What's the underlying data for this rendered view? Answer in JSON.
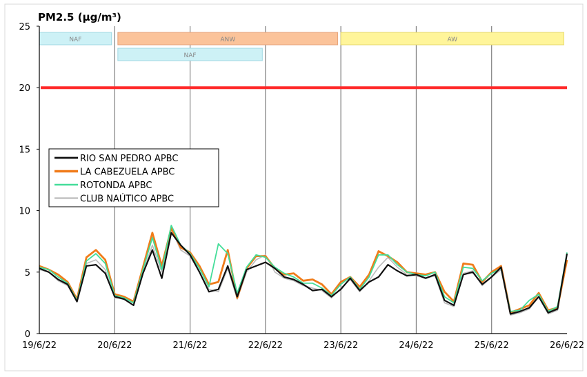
{
  "chart_data": {
    "type": "line",
    "title": "PM2.5 (µg/m³)",
    "xlabel": "",
    "ylabel": "",
    "ylim": [
      0,
      25
    ],
    "y_ticks": [
      "0",
      "5",
      "10",
      "15",
      "20",
      "25"
    ],
    "xlim": [
      "2022-06-19T00:00",
      "2022-06-26T00:00"
    ],
    "x_ticks": [
      "19/6/22",
      "20/6/22",
      "21/6/22",
      "22/6/22",
      "23/6/22",
      "24/6/22",
      "25/6/22",
      "26/6/22"
    ],
    "grid": "vertical at each day",
    "legend_position": "middle-left",
    "reference_line": {
      "value": 20,
      "color": "#ff2a2a"
    },
    "episodes": [
      {
        "label": "NAF",
        "start": "2022-06-19T00:00",
        "end": "2022-06-19T23:00",
        "row": 1,
        "color": "#cdf1f6",
        "border": "#9fd8e3"
      },
      {
        "label": "ANW",
        "start": "2022-06-20T01:00",
        "end": "2022-06-22T23:00",
        "row": 1,
        "color": "#fbc39a",
        "border": "#e5a27a"
      },
      {
        "label": "NAF",
        "start": "2022-06-20T01:00",
        "end": "2022-06-21T23:00",
        "row": 2,
        "color": "#cdf1f6",
        "border": "#9fd8e3"
      },
      {
        "label": "AW",
        "start": "2022-06-23T00:00",
        "end": "2022-06-25T23:00",
        "row": 1,
        "color": "#fff59a",
        "border": "#e6d86a"
      }
    ],
    "x": [
      "2022-06-19T00:00",
      "2022-06-19T03:00",
      "2022-06-19T06:00",
      "2022-06-19T09:00",
      "2022-06-19T12:00",
      "2022-06-19T15:00",
      "2022-06-19T18:00",
      "2022-06-19T21:00",
      "2022-06-20T00:00",
      "2022-06-20T03:00",
      "2022-06-20T06:00",
      "2022-06-20T09:00",
      "2022-06-20T12:00",
      "2022-06-20T15:00",
      "2022-06-20T18:00",
      "2022-06-20T21:00",
      "2022-06-21T00:00",
      "2022-06-21T03:00",
      "2022-06-21T06:00",
      "2022-06-21T09:00",
      "2022-06-21T12:00",
      "2022-06-21T15:00",
      "2022-06-21T18:00",
      "2022-06-21T21:00",
      "2022-06-22T00:00",
      "2022-06-22T03:00",
      "2022-06-22T06:00",
      "2022-06-22T09:00",
      "2022-06-22T12:00",
      "2022-06-22T15:00",
      "2022-06-22T18:00",
      "2022-06-22T21:00",
      "2022-06-23T00:00",
      "2022-06-23T03:00",
      "2022-06-23T06:00",
      "2022-06-23T09:00",
      "2022-06-23T12:00",
      "2022-06-23T15:00",
      "2022-06-23T18:00",
      "2022-06-23T21:00",
      "2022-06-24T00:00",
      "2022-06-24T03:00",
      "2022-06-24T06:00",
      "2022-06-24T09:00",
      "2022-06-24T12:00",
      "2022-06-24T15:00",
      "2022-06-24T18:00",
      "2022-06-24T21:00",
      "2022-06-25T00:00",
      "2022-06-25T03:00",
      "2022-06-25T06:00",
      "2022-06-25T09:00",
      "2022-06-25T12:00",
      "2022-06-25T15:00",
      "2022-06-25T18:00",
      "2022-06-25T21:00",
      "2022-06-26T00:00"
    ],
    "series": [
      {
        "name": "RIO SAN PEDRO APBC",
        "color": "#111111",
        "width": 2.2,
        "values": [
          5.3,
          5.0,
          4.4,
          4.0,
          2.6,
          5.5,
          5.6,
          4.9,
          3.0,
          2.8,
          2.3,
          4.9,
          6.8,
          4.5,
          8.2,
          7.2,
          6.4,
          5.0,
          3.4,
          3.6,
          5.5,
          3.0,
          5.2,
          5.5,
          5.8,
          5.3,
          4.6,
          4.4,
          4.0,
          3.5,
          3.6,
          3.0,
          3.6,
          4.5,
          3.5,
          4.2,
          4.6,
          5.6,
          5.1,
          4.7,
          4.8,
          4.5,
          4.8,
          2.7,
          2.3,
          4.8,
          5.0,
          4.0,
          4.6,
          5.4,
          1.6,
          1.8,
          2.1,
          3.0,
          1.7,
          2.0,
          6.5
        ]
      },
      {
        "name": "LA CABEZUELA APBC",
        "color": "#f07c1a",
        "width": 2.8,
        "values": [
          5.5,
          5.2,
          4.8,
          4.2,
          2.8,
          6.2,
          6.8,
          6.0,
          3.2,
          3.0,
          2.6,
          5.4,
          8.2,
          5.5,
          8.6,
          7.0,
          6.6,
          5.5,
          4.0,
          4.2,
          6.8,
          2.9,
          5.3,
          6.3,
          6.3,
          5.3,
          4.8,
          4.9,
          4.3,
          4.4,
          4.0,
          3.2,
          4.2,
          4.6,
          3.8,
          4.8,
          6.7,
          6.3,
          5.8,
          5.0,
          4.9,
          4.8,
          5.0,
          3.4,
          2.6,
          5.7,
          5.6,
          4.2,
          5.0,
          5.5,
          1.7,
          2.0,
          2.3,
          3.3,
          1.9,
          2.1,
          6.0
        ]
      },
      {
        "name": "ROTONDA APBC",
        "color": "#44dd99",
        "width": 1.8,
        "values": [
          5.4,
          5.2,
          4.6,
          4.1,
          2.7,
          5.9,
          6.5,
          5.7,
          3.1,
          2.9,
          2.5,
          5.2,
          7.8,
          5.2,
          8.8,
          7.2,
          6.5,
          5.3,
          3.8,
          7.3,
          6.5,
          3.3,
          5.4,
          6.4,
          6.2,
          5.4,
          4.9,
          4.6,
          4.1,
          4.1,
          3.7,
          3.1,
          4.0,
          4.6,
          3.6,
          4.6,
          6.4,
          6.4,
          5.6,
          5.0,
          4.8,
          4.7,
          5.0,
          3.0,
          2.5,
          5.4,
          5.3,
          4.3,
          4.9,
          5.3,
          1.8,
          1.9,
          2.7,
          3.2,
          1.8,
          2.2,
          6.6
        ]
      },
      {
        "name": "CLUB NAÚTICO APBC",
        "color": "#bbbbbb",
        "width": 1.6,
        "values": [
          5.2,
          5.0,
          4.3,
          3.9,
          2.6,
          5.7,
          6.0,
          5.2,
          2.9,
          2.9,
          2.3,
          5.0,
          7.2,
          5.0,
          8.5,
          6.8,
          6.3,
          5.0,
          3.6,
          3.4,
          5.3,
          2.8,
          5.0,
          6.0,
          6.4,
          5.0,
          4.5,
          4.3,
          3.9,
          3.7,
          3.5,
          2.9,
          3.7,
          4.4,
          3.4,
          4.3,
          5.4,
          6.2,
          5.4,
          4.8,
          4.7,
          4.5,
          4.7,
          2.5,
          2.2,
          4.9,
          5.1,
          3.9,
          4.6,
          5.2,
          1.5,
          1.7,
          2.0,
          3.0,
          1.6,
          1.9,
          6.4
        ]
      }
    ]
  }
}
